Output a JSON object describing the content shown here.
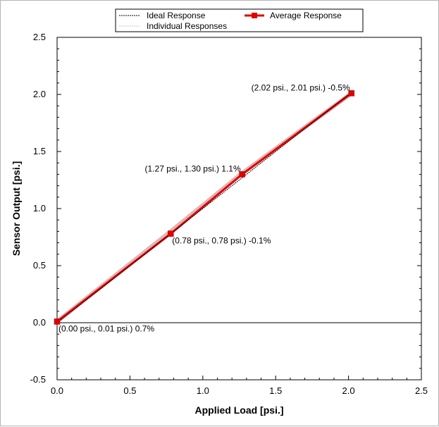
{
  "chart_data": {
    "type": "line",
    "title": "",
    "xlabel": "Applied Load [psi.]",
    "ylabel": "Sensor Output [psi.]",
    "xlim": [
      0,
      2.5
    ],
    "ylim": [
      -0.5,
      2.5
    ],
    "x_ticks": [
      0.0,
      0.5,
      1.0,
      1.5,
      2.0,
      2.5
    ],
    "y_ticks": [
      -0.5,
      0.0,
      0.5,
      1.0,
      1.5,
      2.0,
      2.5
    ],
    "x_tick_labels": [
      "0.0",
      "0.5",
      "1.0",
      "1.5",
      "2.0",
      "2.5"
    ],
    "y_tick_labels": [
      "-0.5",
      "0.0",
      "0.5",
      "1.0",
      "1.5",
      "2.0",
      "2.5"
    ],
    "grid": false,
    "zero_line": true,
    "legend_position": "top",
    "legend": [
      {
        "name": "Ideal Response",
        "style": "dotted",
        "color": "#000000"
      },
      {
        "name": "Individual Responses",
        "style": "dotted",
        "color": "#c8c8c8"
      },
      {
        "name": "Average Response",
        "style": "solid-square",
        "color": "#e00000"
      }
    ],
    "series": [
      {
        "name": "Ideal Response",
        "x": [
          0.0,
          2.02
        ],
        "y": [
          0.0,
          2.02
        ],
        "color": "#000000"
      },
      {
        "name": "Individual Responses",
        "x": [
          0.0,
          0.78,
          1.27,
          2.02
        ],
        "y": [
          0.01,
          0.8,
          1.31,
          2.01
        ],
        "color": "#d9a0a0"
      },
      {
        "name": "Average Response",
        "x": [
          0.0,
          0.78,
          1.27,
          2.02
        ],
        "y": [
          0.01,
          0.78,
          1.3,
          2.01
        ],
        "color": "#e00000"
      }
    ],
    "annotations": [
      {
        "text": "(0.00 psi., 0.01 psi.) 0.7%",
        "x": 0.0,
        "y": 0.01,
        "anchor": "below-right"
      },
      {
        "text": "(0.78 psi., 0.78 psi.) -0.1%",
        "x": 0.78,
        "y": 0.78,
        "anchor": "below-right"
      },
      {
        "text": "(1.27 psi., 1.30 psi.) 1.1%",
        "x": 1.27,
        "y": 1.3,
        "anchor": "left"
      },
      {
        "text": "(2.02 psi., 2.01 psi.) -0.5%",
        "x": 2.02,
        "y": 2.01,
        "anchor": "left"
      }
    ]
  }
}
